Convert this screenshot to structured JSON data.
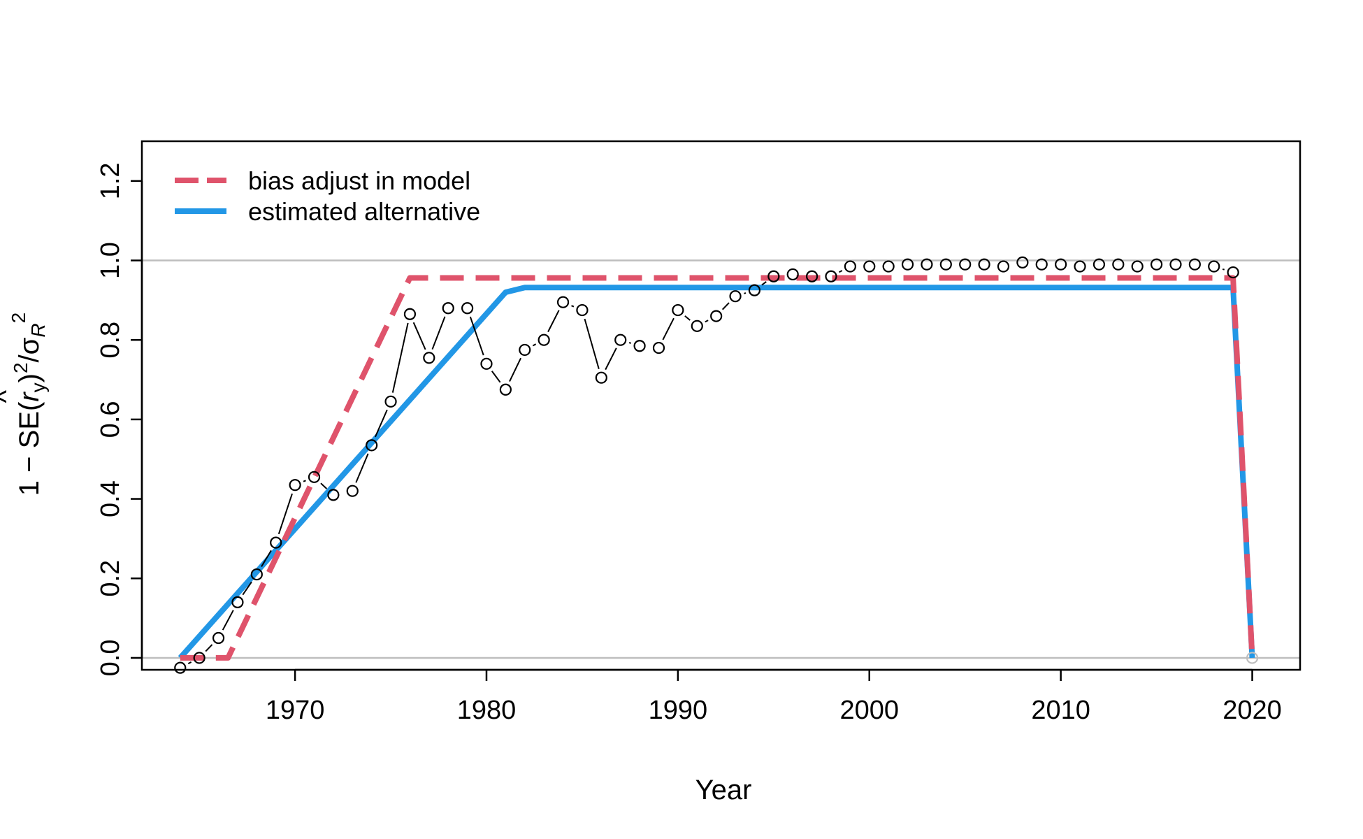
{
  "chart_data": {
    "type": "line",
    "xlabel": "Year",
    "ylabel": {
      "prefix": "1 − SE(",
      "hat": "^",
      "r": "r",
      "r_sub": "y",
      "close": ")",
      "sup1": "2",
      "slash": "/σ",
      "sigma_sub": "R",
      "sup2": "2"
    },
    "xlim": [
      1962,
      2022.5
    ],
    "ylim": [
      -0.03,
      1.3
    ],
    "x_ticks": [
      1970,
      1980,
      1990,
      2000,
      2010,
      2020
    ],
    "y_ticks": [
      0.0,
      0.2,
      0.4,
      0.6,
      0.8,
      1.0,
      1.2
    ],
    "y_tick_labels": [
      "0.0",
      "0.2",
      "0.4",
      "0.6",
      "0.8",
      "1.0",
      "1.2"
    ],
    "x_tick_labels": [
      "1970",
      "1980",
      "1990",
      "2000",
      "2010",
      "2020"
    ],
    "reference_lines": [
      0,
      1
    ],
    "legend_position": "top-left",
    "points": {
      "x": [
        1964,
        1965,
        1966,
        1967,
        1968,
        1969,
        1970,
        1971,
        1972,
        1973,
        1974,
        1975,
        1976,
        1977,
        1978,
        1979,
        1980,
        1981,
        1982,
        1983,
        1984,
        1985,
        1986,
        1987,
        1988,
        1989,
        1990,
        1991,
        1992,
        1993,
        1994,
        1995,
        1996,
        1997,
        1998,
        1999,
        2000,
        2001,
        2002,
        2003,
        2004,
        2005,
        2006,
        2007,
        2008,
        2009,
        2010,
        2011,
        2012,
        2013,
        2014,
        2015,
        2016,
        2017,
        2018,
        2019
      ],
      "y": [
        -0.025,
        0.0,
        0.05,
        0.14,
        0.21,
        0.29,
        0.435,
        0.455,
        0.41,
        0.42,
        0.535,
        0.645,
        0.865,
        0.755,
        0.88,
        0.88,
        0.74,
        0.675,
        0.775,
        0.8,
        0.895,
        0.875,
        0.705,
        0.8,
        0.785,
        0.78,
        0.875,
        0.835,
        0.86,
        0.91,
        0.925,
        0.96,
        0.965,
        0.96,
        0.96,
        0.985,
        0.985,
        0.985,
        0.99,
        0.99,
        0.99,
        0.99,
        0.99,
        0.985,
        0.995,
        0.99,
        0.99,
        0.985,
        0.99,
        0.99,
        0.985,
        0.99,
        0.99,
        0.99,
        0.985,
        0.97
      ],
      "last_point": {
        "x": 2020,
        "y": 0.0
      }
    },
    "series": [
      {
        "name": "bias adjust in model",
        "color": "#DF536B",
        "style": "dashed",
        "x": [
          1964,
          1965.5,
          1966.5,
          1976,
          2019,
          2020
        ],
        "y": [
          0,
          0,
          0,
          0.956,
          0.956,
          0
        ]
      },
      {
        "name": "estimated alternative",
        "color": "#2297E6",
        "style": "solid",
        "x": [
          1964,
          1981,
          1982,
          2019,
          2020
        ],
        "y": [
          0,
          0.92,
          0.932,
          0.932,
          0
        ]
      }
    ]
  }
}
